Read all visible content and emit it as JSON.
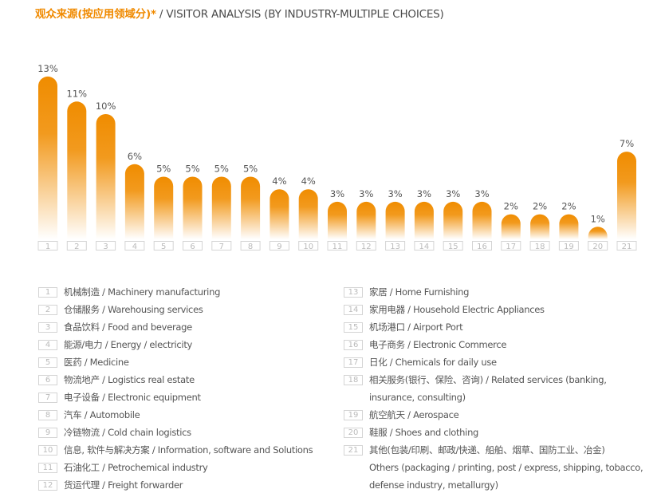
{
  "header": {
    "title_cn": "观众来源(按应用领域分)*",
    "title_en": " / VISITOR ANALYSIS (BY INDUSTRY-MULTIPLE CHOICES)"
  },
  "colors": {
    "accent": "#f08a00",
    "bar_top": "#f08c00",
    "bar_bottom": "#ffffff",
    "box_border": "#d4d4d4"
  },
  "chart_data": {
    "type": "bar",
    "title": "观众来源(按应用领域分)* / VISITOR ANALYSIS (BY INDUSTRY-MULTIPLE CHOICES)",
    "xlabel": "",
    "ylabel": "",
    "ylim": [
      0,
      13
    ],
    "categories": [
      "1",
      "2",
      "3",
      "4",
      "5",
      "6",
      "7",
      "8",
      "9",
      "10",
      "11",
      "12",
      "13",
      "14",
      "15",
      "16",
      "17",
      "18",
      "19",
      "20",
      "21"
    ],
    "values": [
      13,
      11,
      10,
      6,
      5,
      5,
      5,
      5,
      4,
      4,
      3,
      3,
      3,
      3,
      3,
      3,
      2,
      2,
      2,
      1,
      7
    ],
    "labels": [
      "13%",
      "11%",
      "10%",
      "6%",
      "5%",
      "5%",
      "5%",
      "5%",
      "4%",
      "4%",
      "3%",
      "3%",
      "3%",
      "3%",
      "3%",
      "3%",
      "2%",
      "2%",
      "2%",
      "1%",
      "7%"
    ],
    "unit": "%",
    "grid": false
  },
  "legend": {
    "left": [
      {
        "n": "1",
        "lines": [
          "机械制造 / Machinery manufacturing"
        ]
      },
      {
        "n": "2",
        "lines": [
          "仓储服务 / Warehousing services"
        ]
      },
      {
        "n": "3",
        "lines": [
          "食品饮料 / Food and beverage"
        ]
      },
      {
        "n": "4",
        "lines": [
          "能源/电力 / Energy / electricity"
        ]
      },
      {
        "n": "5",
        "lines": [
          "医药 / Medicine"
        ]
      },
      {
        "n": "6",
        "lines": [
          "物流地产 / Logistics real estate"
        ]
      },
      {
        "n": "7",
        "lines": [
          "电子设备 / Electronic equipment"
        ]
      },
      {
        "n": "8",
        "lines": [
          "汽车 / Automobile"
        ]
      },
      {
        "n": "9",
        "lines": [
          "冷链物流 / Cold chain logistics"
        ]
      },
      {
        "n": "10",
        "lines": [
          "信息, 软件与解决方案 / Information, software and Solutions"
        ]
      },
      {
        "n": "11",
        "lines": [
          "石油化工 / Petrochemical industry"
        ]
      },
      {
        "n": "12",
        "lines": [
          "货运代理 / Freight forwarder"
        ]
      }
    ],
    "right": [
      {
        "n": "13",
        "lines": [
          "家居 / Home Furnishing"
        ]
      },
      {
        "n": "14",
        "lines": [
          "家用电器 / Household Electric Appliances"
        ]
      },
      {
        "n": "15",
        "lines": [
          "机场港口 / Airport Port"
        ]
      },
      {
        "n": "16",
        "lines": [
          "电子商务 / Electronic Commerce"
        ]
      },
      {
        "n": "17",
        "lines": [
          "日化 / Chemicals for daily use"
        ]
      },
      {
        "n": "18",
        "lines": [
          "相关服务(银行、保险、咨询) / Related services (banking,",
          "insurance, consulting)"
        ]
      },
      {
        "n": "19",
        "lines": [
          "航空航天 / Aerospace"
        ]
      },
      {
        "n": "20",
        "lines": [
          "鞋服 / Shoes and clothing"
        ]
      },
      {
        "n": "21",
        "lines": [
          "其他(包装/印刷、邮政/快递、船舶、烟草、国防工业、冶金)",
          "Others (packaging / printing, post / express, shipping, tobacco,",
          "defense industry, metallurgy)"
        ]
      }
    ]
  }
}
